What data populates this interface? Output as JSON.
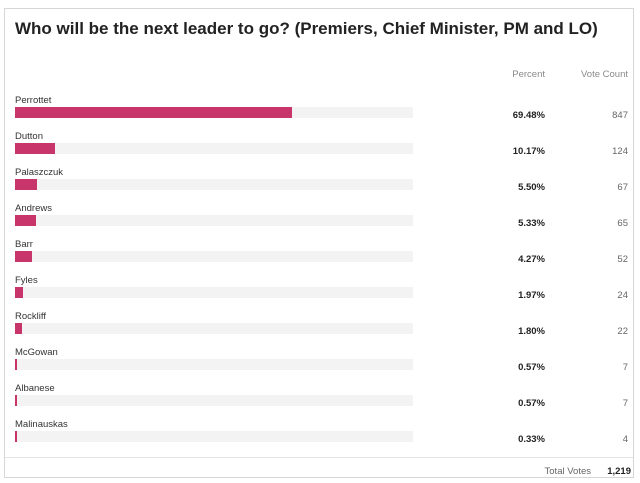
{
  "poll": {
    "title": "Who will be the next leader to go? (Premiers, Chief Minister, PM and LO)",
    "columns": {
      "percent": "Percent",
      "votes": "Vote Count"
    },
    "bar_color": "#c8356b",
    "track_color": "#f3f3f3",
    "options": [
      {
        "label": "Perrottet",
        "percent": "69.48%",
        "share": 69.48,
        "votes": "847"
      },
      {
        "label": "Dutton",
        "percent": "10.17%",
        "share": 10.17,
        "votes": "124"
      },
      {
        "label": "Palaszczuk",
        "percent": "5.50%",
        "share": 5.5,
        "votes": "67"
      },
      {
        "label": "Andrews",
        "percent": "5.33%",
        "share": 5.33,
        "votes": "65"
      },
      {
        "label": "Barr",
        "percent": "4.27%",
        "share": 4.27,
        "votes": "52"
      },
      {
        "label": "Fyles",
        "percent": "1.97%",
        "share": 1.97,
        "votes": "24"
      },
      {
        "label": "Rockliff",
        "percent": "1.80%",
        "share": 1.8,
        "votes": "22"
      },
      {
        "label": "McGowan",
        "percent": "0.57%",
        "share": 0.57,
        "votes": "7"
      },
      {
        "label": "Albanese",
        "percent": "0.57%",
        "share": 0.57,
        "votes": "7"
      },
      {
        "label": "Malinauskas",
        "percent": "0.33%",
        "share": 0.33,
        "votes": "4"
      }
    ],
    "footer": {
      "total_label": "Total Votes",
      "total_value": "1,219"
    }
  }
}
